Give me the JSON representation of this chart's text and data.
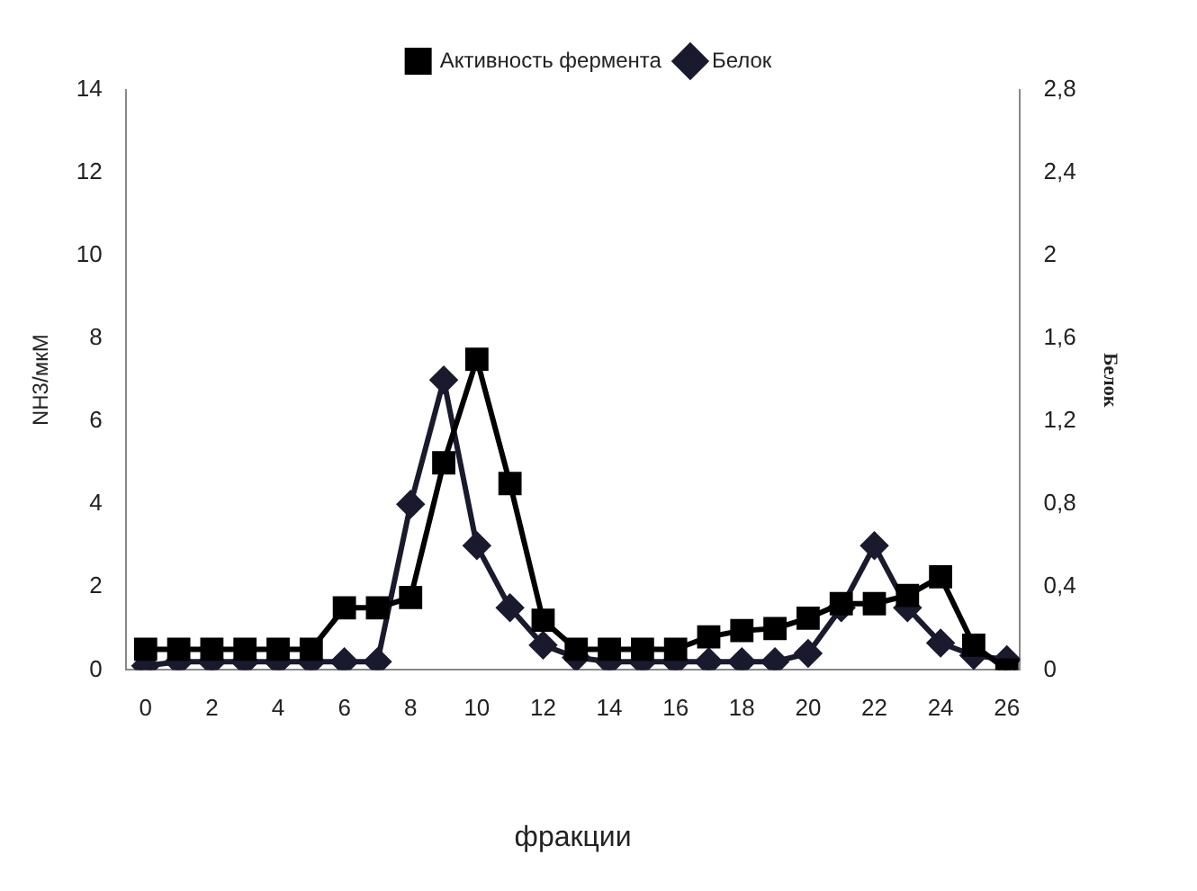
{
  "chart_data": {
    "type": "line",
    "xlabel": "фракции",
    "ylabel": "NH3/мкМ",
    "y2label": "Белок",
    "x": [
      0,
      1,
      2,
      3,
      4,
      5,
      6,
      7,
      8,
      9,
      10,
      11,
      12,
      13,
      14,
      15,
      16,
      17,
      18,
      19,
      20,
      21,
      22,
      23,
      24,
      25,
      26
    ],
    "series": [
      {
        "name": "Белок",
        "color": "#1a1a2e",
        "marker": "diamond",
        "axis": "y2",
        "values": [
          0.02,
          0.04,
          0.04,
          0.04,
          0.04,
          0.04,
          0.04,
          0.04,
          0.8,
          1.4,
          0.6,
          0.3,
          0.12,
          0.06,
          0.04,
          0.04,
          0.04,
          0.04,
          0.04,
          0.04,
          0.08,
          0.3,
          0.6,
          0.3,
          0.13,
          0.07,
          0.05
        ]
      },
      {
        "name": "Активность фермента",
        "color": "#000000",
        "marker": "square",
        "values": [
          0.5,
          0.5,
          0.5,
          0.5,
          0.5,
          0.5,
          1.5,
          1.5,
          1.75,
          5,
          7.5,
          4.5,
          1.2,
          0.5,
          0.5,
          0.5,
          0.5,
          0.8,
          0.95,
          1.0,
          1.25,
          1.6,
          1.6,
          1.8,
          2.25,
          0.6,
          0
        ]
      }
    ],
    "xlim": [
      -0.6,
      26.4
    ],
    "xticks": [
      0,
      2,
      4,
      6,
      8,
      10,
      12,
      14,
      16,
      18,
      20,
      22,
      24,
      26
    ],
    "ylim": [
      0,
      14
    ],
    "yticks": [
      0,
      2,
      4,
      6,
      8,
      10,
      12,
      14
    ],
    "y2lim": [
      0,
      2.8
    ],
    "y2ticks": [
      0,
      {
        "value": 0.4,
        "label": "0,4"
      },
      {
        "value": 0.8,
        "label": "0,8"
      },
      {
        "value": 1.2,
        "label": "1,2"
      },
      {
        "value": 1.6,
        "label": "1,6"
      },
      {
        "value": 2,
        "label": "2"
      },
      {
        "value": 2.4,
        "label": "2,4"
      },
      {
        "value": 2.8,
        "label": "2,8"
      }
    ],
    "grid": false,
    "legend": "top right",
    "line_style": "solid"
  }
}
